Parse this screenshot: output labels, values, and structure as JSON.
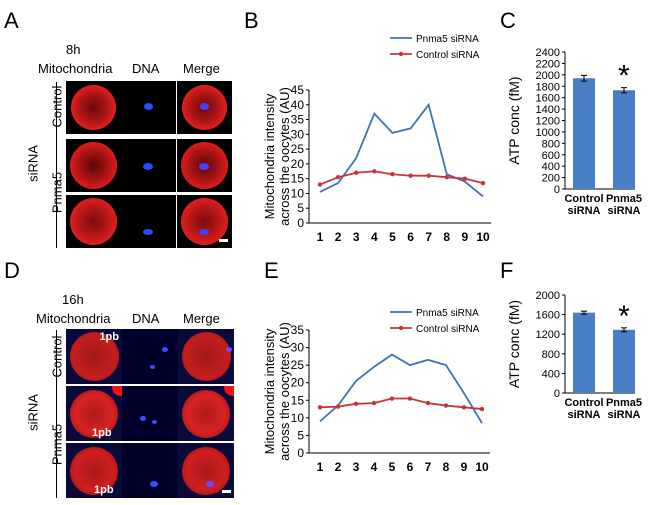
{
  "colors": {
    "pnma5": "#3e72b7",
    "control": "#c4363a",
    "bar": "#4a7ec6"
  },
  "panel_a": {
    "letter": "A",
    "time": "8h",
    "headers": [
      "Mitochondria",
      "DNA",
      "Merge"
    ],
    "group_label": "siRNA",
    "row_labels": [
      "Control",
      "Pnma5"
    ]
  },
  "panel_d": {
    "letter": "D",
    "time": "16h",
    "headers": [
      "Mitochondria",
      "DNA",
      "Merge"
    ],
    "group_label": "siRNA",
    "row_labels": [
      "Control",
      "Pnma5"
    ],
    "pb_label": "1pb"
  },
  "chart_data": [
    {
      "panel": "B",
      "type": "line",
      "ylabel_line1": "Mitochondria intensity",
      "ylabel_line2": "across the oocytes (AU)",
      "ylim": [
        0,
        45
      ],
      "yticks": [
        0,
        5,
        10,
        15,
        20,
        25,
        30,
        35,
        40,
        45
      ],
      "x": [
        1,
        2,
        3,
        4,
        5,
        6,
        7,
        8,
        9,
        10
      ],
      "series": [
        {
          "name": "Pnma5 siRNA",
          "values": [
            10.5,
            13.5,
            22,
            37,
            30.5,
            32,
            40,
            16.5,
            14,
            9
          ]
        },
        {
          "name": "Control siRNA",
          "values": [
            13,
            15.5,
            17,
            17.5,
            16.5,
            16,
            16,
            15.5,
            15,
            13.5
          ]
        }
      ],
      "legend": "top-right"
    },
    {
      "panel": "C",
      "type": "bar",
      "ylabel": "ATP conc (fM)",
      "ylim": [
        0,
        2400
      ],
      "yticks": [
        0,
        200,
        400,
        600,
        800,
        1000,
        1200,
        1400,
        1600,
        1800,
        2000,
        2200,
        2400
      ],
      "categories": [
        [
          "Control",
          "siRNA"
        ],
        [
          "Pnma5",
          "siRNA"
        ]
      ],
      "values": [
        1940,
        1730
      ],
      "errors": [
        50,
        45
      ],
      "significance": [
        "",
        "*"
      ]
    },
    {
      "panel": "E",
      "type": "line",
      "ylabel_line1": "Mitochondria intensity",
      "ylabel_line2": "across the oocytes (AU)",
      "ylim": [
        0,
        35
      ],
      "yticks": [
        0,
        5,
        10,
        15,
        20,
        25,
        30,
        35
      ],
      "x": [
        1,
        2,
        3,
        4,
        5,
        6,
        7,
        8,
        9,
        10
      ],
      "series": [
        {
          "name": "Pnma5 siRNA",
          "values": [
            9,
            13.5,
            20.5,
            24.5,
            28,
            25,
            26.5,
            25,
            17,
            8.5
          ]
        },
        {
          "name": "Control siRNA",
          "values": [
            13,
            13.2,
            14,
            14.2,
            15.5,
            15.5,
            14.2,
            13.5,
            13,
            12.5
          ]
        }
      ],
      "legend": "top-right"
    },
    {
      "panel": "F",
      "type": "bar",
      "ylabel": "ATP conc (fM)",
      "ylim": [
        0,
        2000
      ],
      "yticks": [
        0,
        400,
        800,
        1200,
        1600,
        2000
      ],
      "categories": [
        [
          "Control",
          "siRNA"
        ],
        [
          "Pnma5",
          "siRNA"
        ]
      ],
      "values": [
        1640,
        1290
      ],
      "errors": [
        30,
        40
      ],
      "significance": [
        "",
        "*"
      ]
    }
  ]
}
